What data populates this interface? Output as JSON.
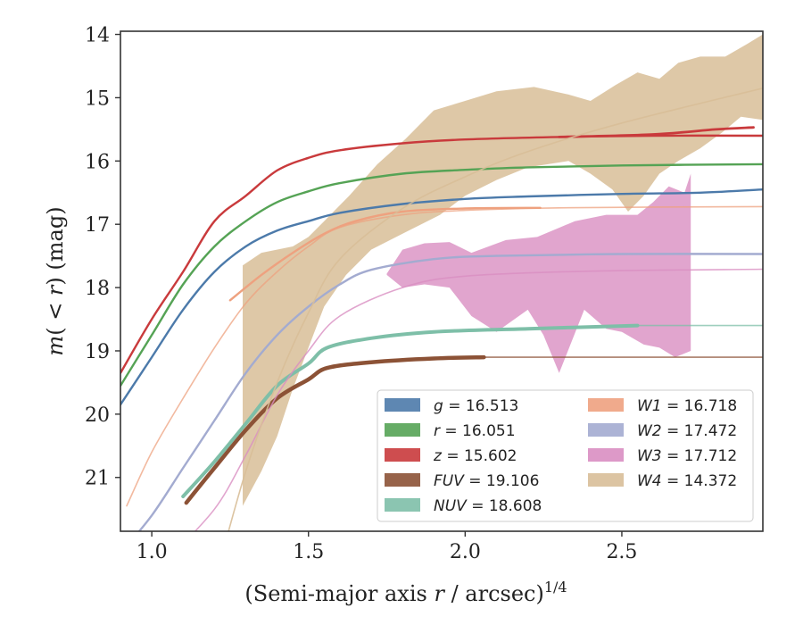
{
  "chart_data": {
    "type": "line",
    "xlabel": "(Semi-major axis r / arcsec)^{1/4}",
    "ylabel": "m(< r) (mag)",
    "xlim": [
      0.9,
      2.95
    ],
    "ylim": [
      21.85,
      13.95
    ],
    "y_inverted": true,
    "xticks": [
      "1.0",
      "1.5",
      "2.0",
      "2.5"
    ],
    "yticks": [
      "14",
      "15",
      "16",
      "17",
      "18",
      "19",
      "20",
      "21"
    ],
    "legend_position": "lower-right",
    "legend": [
      {
        "band": "g",
        "value": "16.513",
        "text": "g = 16.513",
        "color": "#4c7aaa"
      },
      {
        "band": "r",
        "value": "16.051",
        "text": "r = 16.051",
        "color": "#55a355"
      },
      {
        "band": "z",
        "value": "15.602",
        "text": "z = 15.602",
        "color": "#c93a3c"
      },
      {
        "band": "FUV",
        "value": "19.106",
        "text": "FUV = 19.106",
        "color": "#8c5236"
      },
      {
        "band": "NUV",
        "value": "18.608",
        "text": "NUV = 18.608",
        "color": "#7ebfa8"
      },
      {
        "band": "W1",
        "value": "16.718",
        "text": "W1 = 16.718",
        "color": "#eea17f"
      },
      {
        "band": "W2",
        "value": "17.472",
        "text": "W2 = 17.472",
        "color": "#a3abd0"
      },
      {
        "band": "W3",
        "value": "17.712",
        "text": "W3 = 17.712",
        "color": "#d98ec2"
      },
      {
        "band": "W4",
        "value": "14.372",
        "text": "W4 = 14.372",
        "color": "#d8be98"
      }
    ],
    "series": [
      {
        "name": "g",
        "color": "#4c7aaa",
        "width": 2.4,
        "curve": [
          [
            0.9,
            19.85
          ],
          [
            1.0,
            19.1
          ],
          [
            1.1,
            18.35
          ],
          [
            1.2,
            17.75
          ],
          [
            1.3,
            17.35
          ],
          [
            1.4,
            17.1
          ],
          [
            1.5,
            16.95
          ],
          [
            1.6,
            16.82
          ],
          [
            1.8,
            16.68
          ],
          [
            2.0,
            16.6
          ],
          [
            2.2,
            16.56
          ],
          [
            2.5,
            16.52
          ],
          [
            2.75,
            16.5
          ],
          [
            2.95,
            16.45
          ]
        ]
      },
      {
        "name": "r",
        "color": "#55a355",
        "width": 2.4,
        "curve": [
          [
            0.9,
            19.55
          ],
          [
            1.0,
            18.75
          ],
          [
            1.1,
            17.95
          ],
          [
            1.2,
            17.35
          ],
          [
            1.3,
            16.95
          ],
          [
            1.4,
            16.65
          ],
          [
            1.5,
            16.48
          ],
          [
            1.6,
            16.35
          ],
          [
            1.8,
            16.2
          ],
          [
            2.0,
            16.14
          ],
          [
            2.2,
            16.1
          ],
          [
            2.5,
            16.07
          ],
          [
            2.95,
            16.05
          ]
        ]
      },
      {
        "name": "z",
        "color": "#c93a3c",
        "width": 2.4,
        "curve": [
          [
            0.9,
            19.35
          ],
          [
            1.0,
            18.5
          ],
          [
            1.1,
            17.75
          ],
          [
            1.2,
            16.95
          ],
          [
            1.3,
            16.55
          ],
          [
            1.4,
            16.15
          ],
          [
            1.5,
            15.95
          ],
          [
            1.6,
            15.83
          ],
          [
            1.8,
            15.72
          ],
          [
            2.0,
            15.66
          ],
          [
            2.3,
            15.62
          ],
          [
            2.6,
            15.6
          ],
          [
            2.95,
            15.6
          ]
        ]
      },
      {
        "name": "z-profile",
        "color": "#c93a3c",
        "width": 2.8,
        "curve": [
          [
            2.3,
            15.62
          ],
          [
            2.6,
            15.58
          ],
          [
            2.8,
            15.5
          ],
          [
            2.92,
            15.47
          ]
        ]
      },
      {
        "name": "FUV",
        "color": "#8c5236",
        "width": 4.5,
        "curve": [
          [
            1.11,
            21.4
          ],
          [
            1.2,
            20.85
          ],
          [
            1.3,
            20.25
          ],
          [
            1.4,
            19.75
          ],
          [
            1.5,
            19.45
          ],
          [
            1.56,
            19.27
          ],
          [
            1.7,
            19.18
          ],
          [
            1.9,
            19.12
          ],
          [
            2.06,
            19.1
          ]
        ]
      },
      {
        "name": "FUV-ext",
        "color": "#8c5236",
        "width": 1.6,
        "alpha": 0.75,
        "curve": [
          [
            2.06,
            19.1
          ],
          [
            2.95,
            19.1
          ]
        ]
      },
      {
        "name": "NUV",
        "color": "#7ebfa8",
        "width": 4.0,
        "curve": [
          [
            1.1,
            21.3
          ],
          [
            1.2,
            20.75
          ],
          [
            1.3,
            20.15
          ],
          [
            1.4,
            19.55
          ],
          [
            1.5,
            19.2
          ],
          [
            1.56,
            18.95
          ],
          [
            1.7,
            18.8
          ],
          [
            1.9,
            18.7
          ],
          [
            2.2,
            18.65
          ],
          [
            2.55,
            18.6
          ]
        ]
      },
      {
        "name": "NUV-ext",
        "color": "#7ebfa8",
        "width": 1.6,
        "alpha": 0.75,
        "curve": [
          [
            2.55,
            18.6
          ],
          [
            2.95,
            18.6
          ]
        ]
      },
      {
        "name": "W1",
        "color": "#eea17f",
        "width": 2.4,
        "curve": [
          [
            1.25,
            18.2
          ],
          [
            1.35,
            17.8
          ],
          [
            1.45,
            17.45
          ],
          [
            1.55,
            17.15
          ],
          [
            1.65,
            16.95
          ],
          [
            1.8,
            16.8
          ],
          [
            2.0,
            16.75
          ],
          [
            2.24,
            16.74
          ]
        ]
      },
      {
        "name": "W1-model",
        "color": "#eea17f",
        "width": 1.6,
        "alpha": 0.75,
        "curve": [
          [
            0.92,
            21.45
          ],
          [
            1.0,
            20.6
          ],
          [
            1.1,
            19.75
          ],
          [
            1.2,
            18.95
          ],
          [
            1.3,
            18.25
          ],
          [
            1.4,
            17.75
          ],
          [
            1.5,
            17.35
          ],
          [
            1.6,
            17.05
          ],
          [
            1.8,
            16.85
          ],
          [
            2.0,
            16.78
          ],
          [
            2.3,
            16.74
          ],
          [
            2.95,
            16.72
          ]
        ]
      },
      {
        "name": "W2",
        "color": "#a3abd0",
        "width": 2.4,
        "curve": [
          [
            0.9,
            22.2
          ],
          [
            1.0,
            21.6
          ],
          [
            1.1,
            20.85
          ],
          [
            1.2,
            20.1
          ],
          [
            1.3,
            19.35
          ],
          [
            1.4,
            18.75
          ],
          [
            1.5,
            18.3
          ],
          [
            1.6,
            17.95
          ],
          [
            1.7,
            17.72
          ],
          [
            1.9,
            17.55
          ],
          [
            2.1,
            17.5
          ],
          [
            2.5,
            17.47
          ],
          [
            2.95,
            17.47
          ]
        ]
      },
      {
        "name": "W3-model",
        "color": "#d98ec2",
        "width": 1.6,
        "alpha": 0.8,
        "curve": [
          [
            1.05,
            22.3
          ],
          [
            1.2,
            21.5
          ],
          [
            1.3,
            20.65
          ],
          [
            1.4,
            19.7
          ],
          [
            1.5,
            19.0
          ],
          [
            1.6,
            18.45
          ],
          [
            1.8,
            18.0
          ],
          [
            2.0,
            17.82
          ],
          [
            2.4,
            17.74
          ],
          [
            2.95,
            17.71
          ]
        ]
      },
      {
        "name": "W4-model",
        "color": "#d8be98",
        "width": 1.6,
        "alpha": 0.9,
        "curve": [
          [
            1.22,
            22.3
          ],
          [
            1.3,
            20.9
          ],
          [
            1.4,
            19.5
          ],
          [
            1.5,
            18.4
          ],
          [
            1.6,
            17.55
          ],
          [
            1.8,
            16.75
          ],
          [
            2.0,
            16.25
          ],
          [
            2.2,
            15.85
          ],
          [
            2.5,
            15.4
          ],
          [
            2.95,
            14.85
          ]
        ]
      }
    ],
    "bands": [
      {
        "name": "W3",
        "color": "#d98ec2",
        "alpha": 0.8,
        "upper": [
          [
            1.75,
            17.78
          ],
          [
            1.8,
            17.4
          ],
          [
            1.87,
            17.3
          ],
          [
            1.95,
            17.28
          ],
          [
            2.02,
            17.45
          ],
          [
            2.13,
            17.25
          ],
          [
            2.23,
            17.2
          ],
          [
            2.35,
            16.95
          ],
          [
            2.45,
            16.85
          ],
          [
            2.55,
            16.85
          ],
          [
            2.6,
            16.65
          ],
          [
            2.65,
            16.4
          ],
          [
            2.7,
            16.5
          ],
          [
            2.72,
            16.2
          ]
        ],
        "lower": [
          [
            1.75,
            17.8
          ],
          [
            1.8,
            18.0
          ],
          [
            1.87,
            17.95
          ],
          [
            1.95,
            18.0
          ],
          [
            2.02,
            18.45
          ],
          [
            2.1,
            18.7
          ],
          [
            2.2,
            18.35
          ],
          [
            2.25,
            18.75
          ],
          [
            2.3,
            19.35
          ],
          [
            2.38,
            18.35
          ],
          [
            2.45,
            18.65
          ],
          [
            2.5,
            18.7
          ],
          [
            2.57,
            18.9
          ],
          [
            2.62,
            18.95
          ],
          [
            2.67,
            19.1
          ],
          [
            2.72,
            19.0
          ]
        ]
      },
      {
        "name": "W4",
        "color": "#d8be98",
        "alpha": 0.85,
        "upper": [
          [
            1.29,
            17.65
          ],
          [
            1.35,
            17.45
          ],
          [
            1.45,
            17.35
          ],
          [
            1.5,
            17.2
          ],
          [
            1.55,
            16.95
          ],
          [
            1.63,
            16.55
          ],
          [
            1.72,
            16.05
          ],
          [
            1.81,
            15.65
          ],
          [
            1.9,
            15.2
          ],
          [
            2.0,
            15.05
          ],
          [
            2.1,
            14.9
          ],
          [
            2.22,
            14.83
          ],
          [
            2.33,
            14.95
          ],
          [
            2.4,
            15.05
          ],
          [
            2.48,
            14.8
          ],
          [
            2.55,
            14.6
          ],
          [
            2.62,
            14.7
          ],
          [
            2.68,
            14.45
          ],
          [
            2.75,
            14.35
          ],
          [
            2.83,
            14.35
          ],
          [
            2.9,
            14.15
          ],
          [
            2.95,
            14.0
          ]
        ],
        "lower": [
          [
            1.29,
            21.45
          ],
          [
            1.35,
            20.9
          ],
          [
            1.4,
            20.35
          ],
          [
            1.45,
            19.6
          ],
          [
            1.5,
            18.95
          ],
          [
            1.55,
            18.3
          ],
          [
            1.62,
            17.8
          ],
          [
            1.7,
            17.4
          ],
          [
            1.82,
            17.1
          ],
          [
            1.92,
            16.85
          ],
          [
            2.0,
            16.55
          ],
          [
            2.1,
            16.3
          ],
          [
            2.2,
            16.1
          ],
          [
            2.33,
            16.0
          ],
          [
            2.4,
            16.2
          ],
          [
            2.47,
            16.45
          ],
          [
            2.52,
            16.8
          ],
          [
            2.57,
            16.55
          ],
          [
            2.62,
            16.2
          ],
          [
            2.68,
            16.0
          ],
          [
            2.75,
            15.8
          ],
          [
            2.82,
            15.55
          ],
          [
            2.88,
            15.3
          ],
          [
            2.95,
            15.35
          ]
        ]
      }
    ]
  }
}
